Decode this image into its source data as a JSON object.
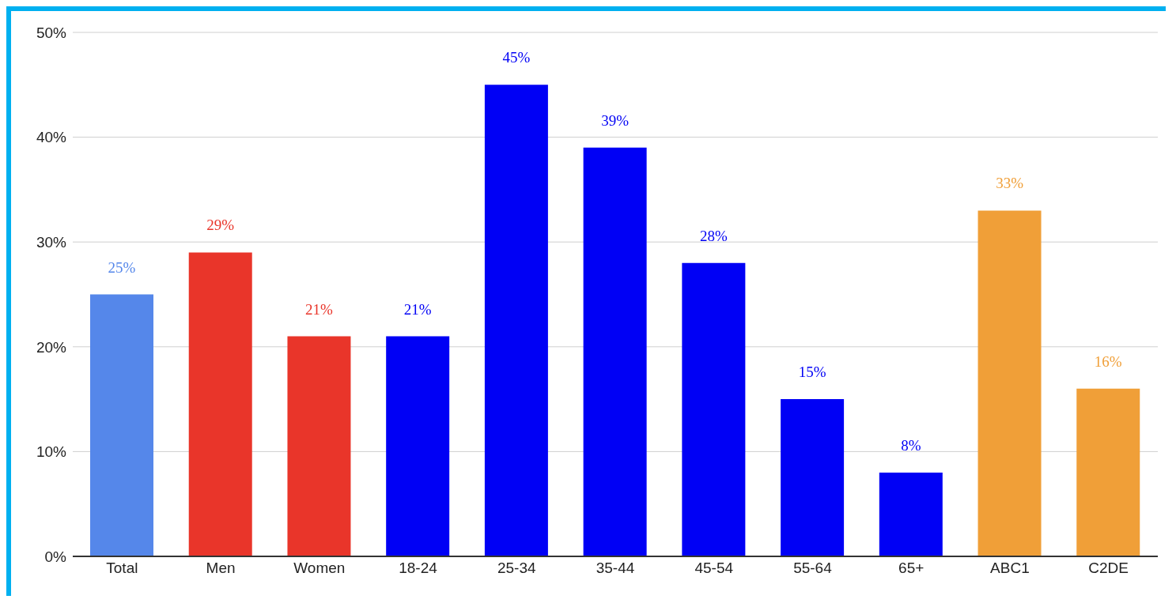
{
  "chart_data": {
    "type": "bar",
    "categories": [
      "Total",
      "Men",
      "Women",
      "18-24",
      "25-34",
      "35-44",
      "45-54",
      "55-64",
      "65+",
      "ABC1",
      "C2DE"
    ],
    "values": [
      25,
      29,
      21,
      21,
      45,
      39,
      28,
      15,
      8,
      33,
      16
    ],
    "colors": [
      "#5587ea",
      "#e9352a",
      "#e9352a",
      "#0000f5",
      "#0000f5",
      "#0000f5",
      "#0000f5",
      "#0000f5",
      "#0000f5",
      "#f09f38",
      "#f09f38"
    ],
    "value_labels": [
      "25%",
      "29%",
      "21%",
      "21%",
      "45%",
      "39%",
      "28%",
      "15%",
      "8%",
      "33%",
      "16%"
    ],
    "ylim": [
      0,
      50
    ],
    "yticks": [
      {
        "value": 0,
        "label": "0%"
      },
      {
        "value": 10,
        "label": "10%"
      },
      {
        "value": 20,
        "label": "20%"
      },
      {
        "value": 30,
        "label": "30%"
      },
      {
        "value": 40,
        "label": "40%"
      },
      {
        "value": 50,
        "label": "50%"
      }
    ],
    "grid": "y"
  }
}
